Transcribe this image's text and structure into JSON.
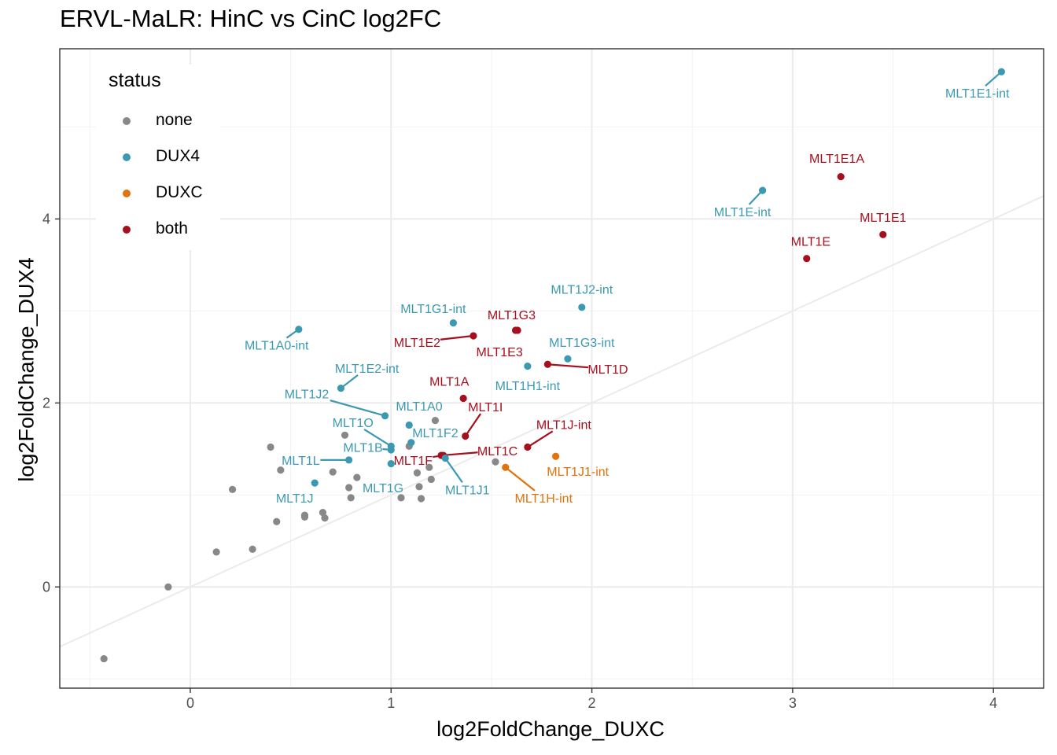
{
  "chart_data": {
    "type": "scatter",
    "title": "ERVL-MaLR: HinC vs CinC log2FC",
    "xlabel": "log2FoldChange_DUXC",
    "ylabel": "log2FoldChange_DUX4",
    "xlim": [
      -0.65,
      4.25
    ],
    "ylim": [
      -1.1,
      5.85
    ],
    "x_ticks": [
      0,
      1,
      2,
      3,
      4
    ],
    "y_ticks": [
      0,
      2,
      4
    ],
    "grid": true,
    "reference_line": {
      "slope": 1,
      "intercept": 0,
      "color": "#ebebeb"
    },
    "legend": {
      "title": "status",
      "placement": "top-left",
      "entries": [
        {
          "name": "none",
          "color": "#888888"
        },
        {
          "name": "DUX4",
          "color": "#3B9AB2"
        },
        {
          "name": "DUXC",
          "color": "#E1720C"
        },
        {
          "name": "both",
          "color": "#A50F1E"
        }
      ]
    },
    "labeled_points": [
      {
        "label": "MLT1E1-int",
        "x": 4.04,
        "y": 5.6,
        "status": "DUX4",
        "lx": 3.92,
        "ly": 5.37
      },
      {
        "label": "MLT1E-int",
        "x": 2.85,
        "y": 4.31,
        "status": "DUX4",
        "lx": 2.75,
        "ly": 4.08
      },
      {
        "label": "MLT1E1A",
        "x": 3.24,
        "y": 4.46,
        "status": "both",
        "lx": 3.22,
        "ly": 4.66
      },
      {
        "label": "MLT1E1",
        "x": 3.45,
        "y": 3.83,
        "status": "both",
        "lx": 3.45,
        "ly": 4.02
      },
      {
        "label": "MLT1E",
        "x": 3.07,
        "y": 3.57,
        "status": "both",
        "lx": 3.09,
        "ly": 3.76
      },
      {
        "label": "MLT1J2-int",
        "x": 1.95,
        "y": 3.04,
        "status": "DUX4",
        "lx": 1.95,
        "ly": 3.24
      },
      {
        "label": "MLT1G1-int",
        "x": 1.31,
        "y": 2.87,
        "status": "DUX4",
        "lx": 1.21,
        "ly": 3.03
      },
      {
        "label": "MLT1G3",
        "x": 1.63,
        "y": 2.79,
        "status": "both",
        "lx": 1.6,
        "ly": 2.96
      },
      {
        "label": "MLT1E2",
        "x": 1.41,
        "y": 2.73,
        "status": "both",
        "lx": 1.13,
        "ly": 2.66
      },
      {
        "label": "MLT1A0-int",
        "x": 0.54,
        "y": 2.8,
        "status": "DUX4",
        "lx": 0.43,
        "ly": 2.63
      },
      {
        "label": "MLT1E3",
        "x": 1.62,
        "y": 2.79,
        "status": "both",
        "lx": 1.54,
        "ly": 2.56
      },
      {
        "label": "MLT1G3-int",
        "x": 1.88,
        "y": 2.48,
        "status": "DUX4",
        "lx": 1.95,
        "ly": 2.66
      },
      {
        "label": "MLT1H1-int",
        "x": 1.68,
        "y": 2.4,
        "status": "DUX4",
        "lx": 1.68,
        "ly": 2.19
      },
      {
        "label": "MLT1D",
        "x": 1.78,
        "y": 2.42,
        "status": "both",
        "lx": 2.08,
        "ly": 2.37
      },
      {
        "label": "MLT1E2-int",
        "x": 0.75,
        "y": 2.16,
        "status": "DUX4",
        "lx": 0.88,
        "ly": 2.38
      },
      {
        "label": "MLT1A",
        "x": 1.36,
        "y": 2.05,
        "status": "both",
        "lx": 1.29,
        "ly": 2.24
      },
      {
        "label": "MLT1J2",
        "x": 0.97,
        "y": 1.86,
        "status": "DUX4",
        "lx": 0.58,
        "ly": 2.1
      },
      {
        "label": "MLT1A0",
        "x": 1.09,
        "y": 1.76,
        "status": "DUX4",
        "lx": 1.14,
        "ly": 1.97
      },
      {
        "label": "MLT1I",
        "x": 1.37,
        "y": 1.64,
        "status": "both",
        "lx": 1.47,
        "ly": 1.96
      },
      {
        "label": "MLT1O",
        "x": 1.0,
        "y": 1.53,
        "status": "DUX4",
        "lx": 0.81,
        "ly": 1.79
      },
      {
        "label": "MLT1F2",
        "x": 1.1,
        "y": 1.57,
        "status": "DUX4",
        "lx": 1.22,
        "ly": 1.68
      },
      {
        "label": "MLT1J-int",
        "x": 1.68,
        "y": 1.52,
        "status": "both",
        "lx": 1.86,
        "ly": 1.77
      },
      {
        "label": "MLT1B",
        "x": 1.0,
        "y": 1.49,
        "status": "DUX4",
        "lx": 0.86,
        "ly": 1.52
      },
      {
        "label": "MLT1C",
        "x": 1.25,
        "y": 1.43,
        "status": "both",
        "lx": 1.53,
        "ly": 1.48
      },
      {
        "label": "MLT1L",
        "x": 0.79,
        "y": 1.38,
        "status": "DUX4",
        "lx": 0.55,
        "ly": 1.38
      },
      {
        "label": "MLT1F",
        "x": 1.26,
        "y": 1.43,
        "status": "both",
        "lx": 1.11,
        "ly": 1.38
      },
      {
        "label": "MLT1J1-int",
        "x": 1.82,
        "y": 1.42,
        "status": "DUXC",
        "lx": 1.93,
        "ly": 1.26
      },
      {
        "label": "MLT1G",
        "x": 1.0,
        "y": 1.34,
        "status": "DUX4",
        "lx": 0.96,
        "ly": 1.08
      },
      {
        "label": "MLT1J1",
        "x": 1.27,
        "y": 1.4,
        "status": "DUX4",
        "lx": 1.38,
        "ly": 1.06
      },
      {
        "label": "MLT1J",
        "x": 0.62,
        "y": 1.13,
        "status": "DUX4",
        "lx": 0.52,
        "ly": 0.97
      },
      {
        "label": "MLT1H-int",
        "x": 1.57,
        "y": 1.3,
        "status": "DUXC",
        "lx": 1.76,
        "ly": 0.97
      }
    ],
    "unlabeled_points": [
      {
        "x": -0.43,
        "y": -0.78,
        "status": "none"
      },
      {
        "x": -0.11,
        "y": 0.0,
        "status": "none"
      },
      {
        "x": 0.13,
        "y": 0.38,
        "status": "none"
      },
      {
        "x": 0.31,
        "y": 0.41,
        "status": "none"
      },
      {
        "x": 0.21,
        "y": 1.06,
        "status": "none"
      },
      {
        "x": 0.4,
        "y": 1.52,
        "status": "none"
      },
      {
        "x": 0.43,
        "y": 0.71,
        "status": "none"
      },
      {
        "x": 0.45,
        "y": 1.27,
        "status": "none"
      },
      {
        "x": 0.57,
        "y": 0.78,
        "status": "none"
      },
      {
        "x": 0.57,
        "y": 0.76,
        "status": "none"
      },
      {
        "x": 0.66,
        "y": 0.81,
        "status": "none"
      },
      {
        "x": 0.67,
        "y": 0.75,
        "status": "none"
      },
      {
        "x": 0.71,
        "y": 1.25,
        "status": "none"
      },
      {
        "x": 0.77,
        "y": 1.65,
        "status": "none"
      },
      {
        "x": 0.79,
        "y": 1.08,
        "status": "none"
      },
      {
        "x": 0.8,
        "y": 0.97,
        "status": "none"
      },
      {
        "x": 0.83,
        "y": 1.19,
        "status": "none"
      },
      {
        "x": 1.05,
        "y": 0.97,
        "status": "none"
      },
      {
        "x": 1.09,
        "y": 1.53,
        "status": "none"
      },
      {
        "x": 1.13,
        "y": 1.24,
        "status": "none"
      },
      {
        "x": 1.14,
        "y": 1.09,
        "status": "none"
      },
      {
        "x": 1.15,
        "y": 0.96,
        "status": "none"
      },
      {
        "x": 1.19,
        "y": 1.3,
        "status": "none"
      },
      {
        "x": 1.2,
        "y": 1.17,
        "status": "none"
      },
      {
        "x": 1.22,
        "y": 1.81,
        "status": "none"
      },
      {
        "x": 1.52,
        "y": 1.36,
        "status": "none"
      }
    ]
  }
}
